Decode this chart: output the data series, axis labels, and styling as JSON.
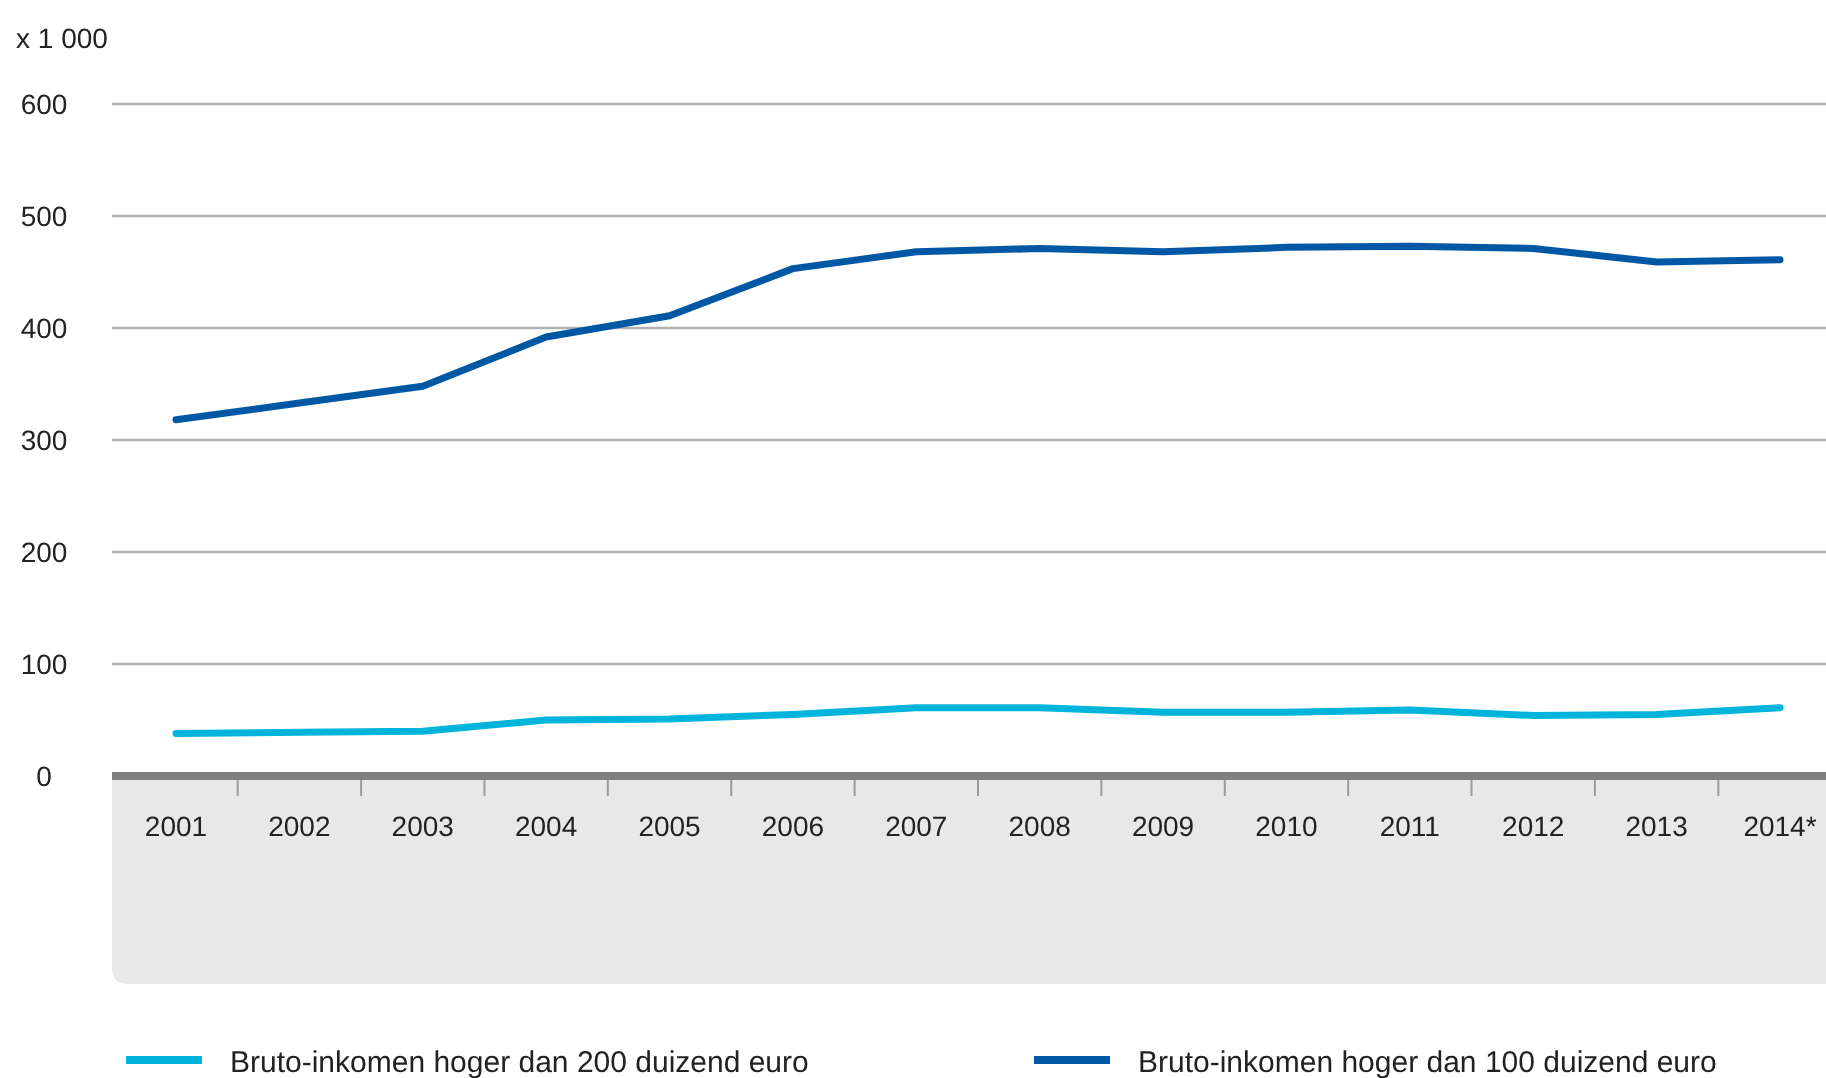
{
  "chart_data": {
    "type": "line",
    "ylabel": "x 1 000",
    "categories": [
      "2001",
      "2002",
      "2003",
      "2004",
      "2005",
      "2006",
      "2007",
      "2008",
      "2009",
      "2010",
      "2011",
      "2012",
      "2013",
      "2014*"
    ],
    "series": [
      {
        "name": "Bruto-inkomen hoger dan 200 duizend euro",
        "color": "#00b4dc",
        "values": [
          38,
          39,
          40,
          50,
          51,
          55,
          61,
          61,
          57,
          57,
          59,
          54,
          55,
          61
        ]
      },
      {
        "name": "Bruto-inkomen hoger dan 100 duizend euro",
        "color": "#0058a5",
        "values": [
          318,
          333,
          348,
          392,
          411,
          453,
          468,
          471,
          468,
          472,
          473,
          471,
          459,
          461
        ]
      }
    ],
    "ylim": [
      0,
      600
    ],
    "yticks": [
      0,
      100,
      200,
      300,
      400,
      500,
      600
    ],
    "grid": "y",
    "legend": "bottom",
    "line_style": "solid",
    "marker": "none"
  }
}
